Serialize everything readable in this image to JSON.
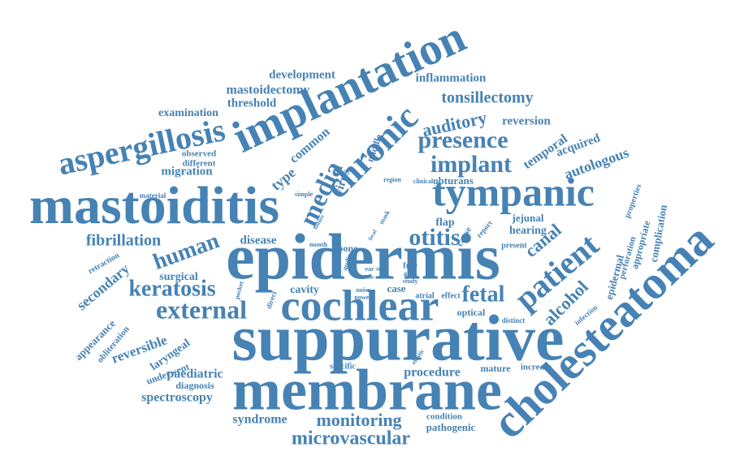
{
  "word_cloud": {
    "color": "#4682b4",
    "words": [
      "epidermis",
      "suppurative",
      "membrane",
      "cholesteatoma",
      "mastoiditis",
      "implantation",
      "tympanic",
      "cochlear",
      "chronic",
      "aspergillosis",
      "patient",
      "media",
      "external",
      "presence",
      "implant",
      "otitis",
      "human",
      "keratosis",
      "fetal",
      "microvascular",
      "monitoring",
      "tonsillectomy",
      "auditory",
      "fibrillation",
      "secondary",
      "alcohol",
      "autologous",
      "canal",
      "reversible",
      "spectroscopy",
      "procedure",
      "syndrome",
      "paediatric",
      "mastoidectomy",
      "development",
      "inflammation",
      "threshold",
      "examination",
      "reversion",
      "temporal",
      "acquired",
      "common",
      "type",
      "migration",
      "observed",
      "different",
      "virus",
      "middle",
      "disease",
      "surgical",
      "appearance",
      "obliteration",
      "laryngeal",
      "underwent",
      "diagnosis",
      "cavity",
      "case",
      "flap",
      "hearing",
      "jejunal",
      "cause",
      "report",
      "epidermal",
      "perforation",
      "appropriate",
      "complication",
      "properties",
      "pathogenic",
      "condition",
      "specific",
      "mature",
      "increase",
      "optical",
      "atrial",
      "effect",
      "distinct",
      "infection",
      "elastic",
      "present",
      "free",
      "area",
      "study",
      "ear",
      "skin",
      "bone",
      "audit",
      "noise",
      "power",
      "direct",
      "pocket",
      "retraction",
      "month",
      "material",
      "simple",
      "failure",
      "local",
      "mask",
      "region",
      "clinical",
      "obturans",
      "time"
    ]
  }
}
